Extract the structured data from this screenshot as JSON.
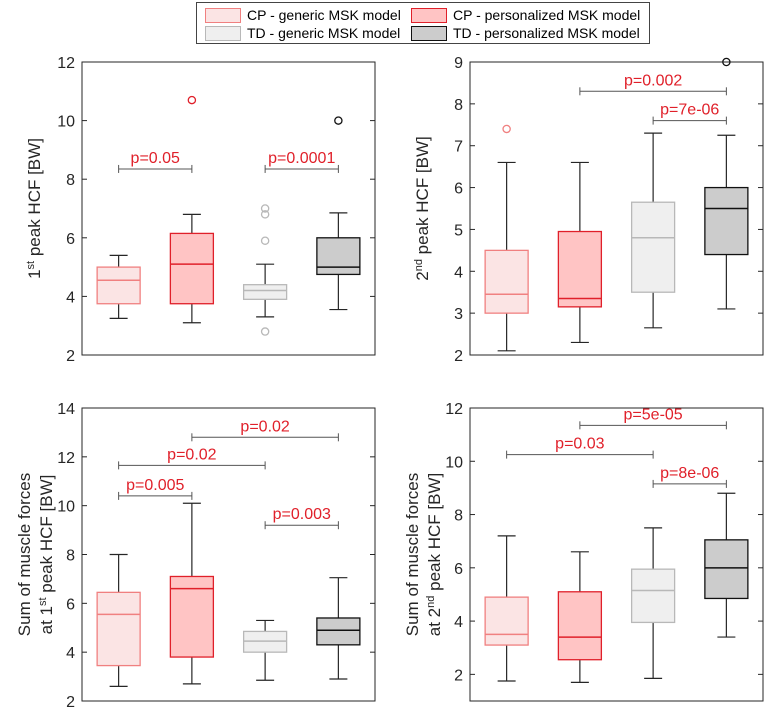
{
  "legend": {
    "items": [
      {
        "label": "CP - generic MSK model",
        "key": "cpg"
      },
      {
        "label": "CP - personalized MSK model",
        "key": "cpp"
      },
      {
        "label": "TD - generic MSK model",
        "key": "tdg"
      },
      {
        "label": "TD - personalized MSK model",
        "key": "tdp"
      }
    ]
  },
  "styles": {
    "cpg": {
      "stroke": "#f08080",
      "fill": "#fbe4e4",
      "median": "#f08080"
    },
    "cpp": {
      "stroke": "#e0202a",
      "fill": "#ffc4c4",
      "median": "#e0202a"
    },
    "tdg": {
      "stroke": "#b8b8b8",
      "fill": "#efefef",
      "median": "#b8b8b8"
    },
    "tdp": {
      "stroke": "#111111",
      "fill": "#cccccc",
      "median": "#111111"
    }
  },
  "chart_data": [
    {
      "type": "box",
      "ylabel": [
        "1st peak HCF [BW]"
      ],
      "ylabel_sup": [
        {
          "base": "1",
          "sup": "st",
          "rest": " peak HCF [BW]"
        }
      ],
      "ylim": [
        2,
        12
      ],
      "yticks": [
        2,
        4,
        6,
        8,
        10,
        12
      ],
      "groups": [
        "CP - generic MSK model",
        "CP - personalized MSK model",
        "TD - generic MSK model",
        "TD - personalized MSK model"
      ],
      "boxes": [
        {
          "key": "cpg",
          "whisker_low": 3.25,
          "q1": 3.75,
          "median": 4.55,
          "q3": 5.0,
          "whisker_high": 5.4,
          "outliers": []
        },
        {
          "key": "cpp",
          "whisker_low": 3.1,
          "q1": 3.75,
          "median": 5.1,
          "q3": 6.15,
          "whisker_high": 6.8,
          "outliers": [
            10.7
          ]
        },
        {
          "key": "tdg",
          "whisker_low": 3.3,
          "q1": 3.9,
          "median": 4.2,
          "q3": 4.4,
          "whisker_high": 5.1,
          "outliers": [
            7.0,
            6.8,
            5.9,
            2.8
          ]
        },
        {
          "key": "tdp",
          "whisker_low": 3.55,
          "q1": 4.75,
          "median": 5.0,
          "q3": 6.0,
          "whisker_high": 6.85,
          "outliers": [
            10.0
          ]
        }
      ],
      "comparisons": [
        {
          "from": 0,
          "to": 1,
          "y": 8.35,
          "label": "p=0.05"
        },
        {
          "from": 2,
          "to": 3,
          "y": 8.35,
          "label": "p=0.0001"
        }
      ]
    },
    {
      "type": "box",
      "ylabel_sup": [
        {
          "base": "2",
          "sup": "nd",
          "rest": " peak HCF [BW]"
        }
      ],
      "ylim": [
        2,
        9
      ],
      "yticks": [
        2,
        3,
        4,
        5,
        6,
        7,
        8,
        9
      ],
      "groups": [
        "CP - generic MSK model",
        "CP - personalized MSK model",
        "TD - generic MSK model",
        "TD - personalized MSK model"
      ],
      "boxes": [
        {
          "key": "cpg",
          "whisker_low": 2.1,
          "q1": 3.0,
          "median": 3.45,
          "q3": 4.5,
          "whisker_high": 6.6,
          "outliers": [
            7.4
          ]
        },
        {
          "key": "cpp",
          "whisker_low": 2.3,
          "q1": 3.15,
          "median": 3.35,
          "q3": 4.95,
          "whisker_high": 6.6,
          "outliers": []
        },
        {
          "key": "tdg",
          "whisker_low": 2.65,
          "q1": 3.5,
          "median": 4.8,
          "q3": 5.65,
          "whisker_high": 7.3,
          "outliers": []
        },
        {
          "key": "tdp",
          "whisker_low": 3.1,
          "q1": 4.4,
          "median": 5.5,
          "q3": 6.0,
          "whisker_high": 7.25,
          "outliers": [
            9.0
          ]
        }
      ],
      "comparisons": [
        {
          "from": 1,
          "to": 3,
          "y": 8.3,
          "label": "p=0.002"
        },
        {
          "from": 2,
          "to": 3,
          "y": 7.6,
          "label": "p=7e-06"
        }
      ]
    },
    {
      "type": "box",
      "ylabel_sup": [
        {
          "base": "",
          "sup": "",
          "rest": "Sum of muscle forces"
        },
        {
          "base": "at 1",
          "sup": "st",
          "rest": " peak HCF [BW]"
        }
      ],
      "ylim": [
        2,
        14
      ],
      "yticks": [
        2,
        4,
        6,
        8,
        10,
        12,
        14
      ],
      "groups": [
        "CP - generic MSK model",
        "CP - personalized MSK model",
        "TD - generic MSK model",
        "TD - personalized MSK model"
      ],
      "boxes": [
        {
          "key": "cpg",
          "whisker_low": 2.6,
          "q1": 3.45,
          "median": 5.55,
          "q3": 6.45,
          "whisker_high": 8.0,
          "outliers": []
        },
        {
          "key": "cpp",
          "whisker_low": 2.7,
          "q1": 3.8,
          "median": 6.6,
          "q3": 7.1,
          "whisker_high": 10.1,
          "outliers": []
        },
        {
          "key": "tdg",
          "whisker_low": 2.85,
          "q1": 4.0,
          "median": 4.45,
          "q3": 4.85,
          "whisker_high": 5.3,
          "outliers": []
        },
        {
          "key": "tdp",
          "whisker_low": 2.9,
          "q1": 4.3,
          "median": 4.9,
          "q3": 5.4,
          "whisker_high": 7.05,
          "outliers": []
        }
      ],
      "comparisons": [
        {
          "from": 1,
          "to": 3,
          "y": 12.8,
          "label": "p=0.02"
        },
        {
          "from": 0,
          "to": 2,
          "y": 11.65,
          "label": "p=0.02"
        },
        {
          "from": 0,
          "to": 1,
          "y": 10.4,
          "label": "p=0.005"
        },
        {
          "from": 2,
          "to": 3,
          "y": 9.2,
          "label": "p=0.003"
        }
      ]
    },
    {
      "type": "box",
      "ylabel_sup": [
        {
          "base": "",
          "sup": "",
          "rest": "Sum of muscle forces"
        },
        {
          "base": "at 2",
          "sup": "nd",
          "rest": " peak HCF [BW]"
        }
      ],
      "ylim": [
        1,
        12
      ],
      "yticks": [
        2,
        4,
        6,
        8,
        10,
        12
      ],
      "groups": [
        "CP - generic MSK model",
        "CP - personalized MSK model",
        "TD - generic MSK model",
        "TD - personalized MSK model"
      ],
      "boxes": [
        {
          "key": "cpg",
          "whisker_low": 1.75,
          "q1": 3.1,
          "median": 3.5,
          "q3": 4.9,
          "whisker_high": 7.2,
          "outliers": []
        },
        {
          "key": "cpp",
          "whisker_low": 1.7,
          "q1": 2.55,
          "median": 3.4,
          "q3": 5.1,
          "whisker_high": 6.6,
          "outliers": []
        },
        {
          "key": "tdg",
          "whisker_low": 1.85,
          "q1": 3.95,
          "median": 5.15,
          "q3": 5.95,
          "whisker_high": 7.5,
          "outliers": []
        },
        {
          "key": "tdp",
          "whisker_low": 3.4,
          "q1": 4.85,
          "median": 6.0,
          "q3": 7.05,
          "whisker_high": 8.8,
          "outliers": []
        }
      ],
      "comparisons": [
        {
          "from": 1,
          "to": 3,
          "y": 11.35,
          "label": "p=5e-05"
        },
        {
          "from": 0,
          "to": 2,
          "y": 10.25,
          "label": "p=0.03"
        },
        {
          "from": 2,
          "to": 3,
          "y": 9.15,
          "label": "p=8e-06"
        }
      ]
    }
  ]
}
